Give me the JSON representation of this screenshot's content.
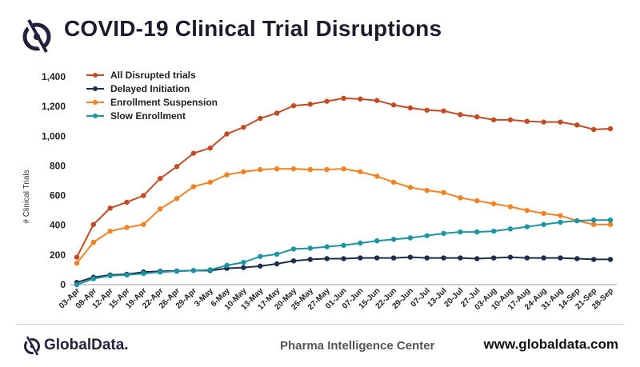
{
  "header": {
    "title": "COVID-19 Clinical Trial Disruptions",
    "logo_icon": "globaldata-logo-icon"
  },
  "footer": {
    "brand": "GlobalData.",
    "center": "Pharma Intelligence Center",
    "site": "www.globaldata.com"
  },
  "chart_data": {
    "type": "line",
    "title": "",
    "xlabel": "",
    "ylabel": "# Clinical Trials",
    "ylim": [
      0,
      1400
    ],
    "yticks": [
      "0",
      "200",
      "400",
      "600",
      "800",
      "1,000",
      "1,200",
      "1,400"
    ],
    "legend_position": "top-left",
    "grid": false,
    "categories": [
      "03-Apr",
      "08-Apr",
      "12-Apr",
      "15-Apr",
      "19-Apr",
      "22-Apr",
      "26-Apr",
      "29-Apr",
      "3-May",
      "6-May",
      "10-May",
      "13-May",
      "17-May",
      "20-May",
      "25-May",
      "27-May",
      "01-Jun",
      "07-Jun",
      "15-Jun",
      "22-Jun",
      "29-Jun",
      "07-Jul",
      "13-Jul",
      "20-Jul",
      "27-Jul",
      "03-Aug",
      "10-Aug",
      "17-Aug",
      "24-Aug",
      "31-Aug",
      "14-Sep",
      "21-Sep",
      "28-Sep"
    ],
    "series": [
      {
        "name": "All Disrupted trials",
        "color": "#c44a24",
        "values": [
          185,
          405,
          515,
          555,
          600,
          715,
          795,
          885,
          920,
          1015,
          1060,
          1120,
          1155,
          1205,
          1215,
          1235,
          1255,
          1250,
          1240,
          1210,
          1190,
          1175,
          1170,
          1145,
          1130,
          1110,
          1110,
          1100,
          1095,
          1095,
          1075,
          1045,
          1050
        ]
      },
      {
        "name": "Delayed Initiation",
        "color": "#1e2d4c",
        "values": [
          15,
          50,
          65,
          70,
          85,
          90,
          92,
          95,
          95,
          110,
          115,
          125,
          140,
          160,
          170,
          175,
          175,
          180,
          180,
          180,
          185,
          180,
          180,
          180,
          175,
          180,
          185,
          180,
          180,
          180,
          175,
          170,
          170
        ]
      },
      {
        "name": "Enrollment Suspension",
        "color": "#f58220",
        "values": [
          145,
          285,
          360,
          385,
          405,
          510,
          580,
          660,
          690,
          740,
          760,
          775,
          780,
          780,
          775,
          775,
          780,
          760,
          730,
          690,
          655,
          635,
          620,
          585,
          565,
          545,
          525,
          500,
          480,
          465,
          430,
          405,
          405
        ]
      },
      {
        "name": "Slow Enrollment",
        "color": "#1b94a3",
        "values": [
          0,
          40,
          60,
          65,
          75,
          85,
          90,
          95,
          100,
          130,
          150,
          190,
          205,
          240,
          245,
          255,
          265,
          280,
          295,
          305,
          315,
          330,
          345,
          355,
          355,
          360,
          375,
          390,
          405,
          420,
          430,
          435,
          435
        ]
      }
    ]
  }
}
